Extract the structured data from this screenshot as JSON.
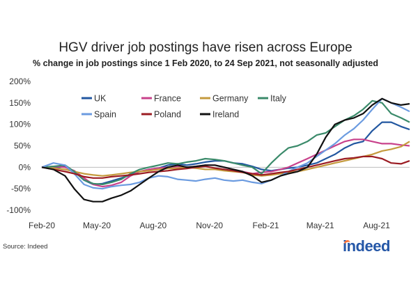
{
  "source": "Source: Indeed",
  "logo_text": "indeed",
  "chart_data": {
    "type": "line",
    "title": "HGV driver job postings have risen across Europe",
    "subtitle": "% change in job postings since 1 Feb 2020, to 24 Sep 2021, not seasonally adjusted",
    "xlabel": "",
    "ylabel": "",
    "ylim": [
      -100,
      200
    ],
    "y_ticks": [
      -100,
      -50,
      0,
      50,
      100,
      150,
      200
    ],
    "y_tick_labels": [
      "-100%",
      "-50%",
      "0%",
      "50%",
      "100%",
      "150%",
      "200%"
    ],
    "x_ticks": [
      "2020-02-01",
      "2020-05-01",
      "2020-08-01",
      "2020-11-01",
      "2021-02-01",
      "2021-05-01",
      "2021-08-01"
    ],
    "x_tick_labels": [
      "Feb-20",
      "May-20",
      "Aug-20",
      "Nov-20",
      "Feb-21",
      "May-21",
      "Aug-21"
    ],
    "x_range": [
      "2020-02-01",
      "2021-09-24"
    ],
    "legend_placement": "top-left",
    "series": [
      {
        "name": "UK",
        "color": "#2257a0",
        "x": [
          "2020-02-01",
          "2020-02-20",
          "2020-03-10",
          "2020-03-25",
          "2020-04-10",
          "2020-04-25",
          "2020-05-10",
          "2020-05-25",
          "2020-06-10",
          "2020-06-25",
          "2020-07-10",
          "2020-07-25",
          "2020-08-10",
          "2020-08-25",
          "2020-09-10",
          "2020-09-25",
          "2020-10-10",
          "2020-10-25",
          "2020-11-10",
          "2020-11-25",
          "2020-12-10",
          "2020-12-25",
          "2021-01-10",
          "2021-01-25",
          "2021-02-10",
          "2021-02-25",
          "2021-03-10",
          "2021-03-25",
          "2021-04-10",
          "2021-04-25",
          "2021-05-10",
          "2021-05-25",
          "2021-06-10",
          "2021-06-25",
          "2021-07-10",
          "2021-07-25",
          "2021-08-10",
          "2021-08-25",
          "2021-09-10",
          "2021-09-24"
        ],
        "values": [
          0,
          -2,
          2,
          -10,
          -30,
          -40,
          -38,
          -32,
          -25,
          -18,
          -10,
          -5,
          -2,
          5,
          8,
          5,
          8,
          12,
          15,
          15,
          10,
          8,
          2,
          -5,
          -8,
          -5,
          -2,
          0,
          5,
          10,
          20,
          30,
          45,
          55,
          60,
          85,
          105,
          105,
          95,
          88
        ]
      },
      {
        "name": "France",
        "color": "#c8418b",
        "x": [
          "2020-02-01",
          "2020-02-20",
          "2020-03-10",
          "2020-03-25",
          "2020-04-10",
          "2020-04-25",
          "2020-05-10",
          "2020-05-25",
          "2020-06-10",
          "2020-06-25",
          "2020-07-10",
          "2020-07-25",
          "2020-08-10",
          "2020-08-25",
          "2020-09-10",
          "2020-09-25",
          "2020-10-10",
          "2020-10-25",
          "2020-11-10",
          "2020-11-25",
          "2020-12-10",
          "2020-12-25",
          "2021-01-10",
          "2021-01-25",
          "2021-02-10",
          "2021-02-25",
          "2021-03-10",
          "2021-03-25",
          "2021-04-10",
          "2021-04-25",
          "2021-05-10",
          "2021-05-25",
          "2021-06-10",
          "2021-06-25",
          "2021-07-10",
          "2021-07-25",
          "2021-08-10",
          "2021-08-25",
          "2021-09-10",
          "2021-09-24"
        ],
        "values": [
          0,
          2,
          0,
          -8,
          -25,
          -40,
          -45,
          -42,
          -35,
          -20,
          -10,
          -5,
          -2,
          0,
          2,
          0,
          2,
          5,
          5,
          0,
          -5,
          -10,
          -15,
          -12,
          -10,
          -5,
          0,
          10,
          20,
          30,
          40,
          50,
          60,
          65,
          65,
          60,
          55,
          55,
          52,
          50
        ]
      },
      {
        "name": "Germany",
        "color": "#c49a3d",
        "x": [
          "2020-02-01",
          "2020-02-20",
          "2020-03-10",
          "2020-03-25",
          "2020-04-10",
          "2020-04-25",
          "2020-05-10",
          "2020-05-25",
          "2020-06-10",
          "2020-06-25",
          "2020-07-10",
          "2020-07-25",
          "2020-08-10",
          "2020-08-25",
          "2020-09-10",
          "2020-09-25",
          "2020-10-10",
          "2020-10-25",
          "2020-11-10",
          "2020-11-25",
          "2020-12-10",
          "2020-12-25",
          "2021-01-10",
          "2021-01-25",
          "2021-02-10",
          "2021-02-25",
          "2021-03-10",
          "2021-03-25",
          "2021-04-10",
          "2021-04-25",
          "2021-05-10",
          "2021-05-25",
          "2021-06-10",
          "2021-06-25",
          "2021-07-10",
          "2021-07-25",
          "2021-08-10",
          "2021-08-25",
          "2021-09-10",
          "2021-09-24"
        ],
        "values": [
          0,
          -2,
          -5,
          -10,
          -15,
          -18,
          -20,
          -18,
          -15,
          -12,
          -10,
          -8,
          -5,
          -3,
          -2,
          0,
          -2,
          -5,
          -5,
          -8,
          -10,
          -12,
          -18,
          -20,
          -18,
          -15,
          -12,
          -10,
          -5,
          0,
          5,
          10,
          15,
          20,
          25,
          30,
          38,
          42,
          48,
          60
        ]
      },
      {
        "name": "Italy",
        "color": "#3a8a6a",
        "x": [
          "2020-02-01",
          "2020-02-20",
          "2020-03-10",
          "2020-03-25",
          "2020-04-10",
          "2020-04-25",
          "2020-05-10",
          "2020-05-25",
          "2020-06-10",
          "2020-06-25",
          "2020-07-10",
          "2020-07-25",
          "2020-08-10",
          "2020-08-25",
          "2020-09-10",
          "2020-09-25",
          "2020-10-10",
          "2020-10-25",
          "2020-11-10",
          "2020-11-25",
          "2020-12-10",
          "2020-12-25",
          "2021-01-10",
          "2021-01-25",
          "2021-02-10",
          "2021-02-25",
          "2021-03-10",
          "2021-03-25",
          "2021-04-10",
          "2021-04-25",
          "2021-05-10",
          "2021-05-25",
          "2021-06-10",
          "2021-06-25",
          "2021-07-10",
          "2021-07-25",
          "2021-08-10",
          "2021-08-25",
          "2021-09-10",
          "2021-09-24"
        ],
        "values": [
          0,
          2,
          5,
          -10,
          -30,
          -38,
          -40,
          -35,
          -28,
          -15,
          -5,
          0,
          5,
          10,
          8,
          12,
          15,
          20,
          18,
          15,
          10,
          5,
          0,
          -15,
          10,
          30,
          45,
          50,
          60,
          75,
          80,
          95,
          110,
          120,
          135,
          155,
          150,
          125,
          115,
          105
        ]
      },
      {
        "name": "Spain",
        "color": "#6b9be0",
        "x": [
          "2020-02-01",
          "2020-02-20",
          "2020-03-10",
          "2020-03-25",
          "2020-04-10",
          "2020-04-25",
          "2020-05-10",
          "2020-05-25",
          "2020-06-10",
          "2020-06-25",
          "2020-07-10",
          "2020-07-25",
          "2020-08-10",
          "2020-08-25",
          "2020-09-10",
          "2020-09-25",
          "2020-10-10",
          "2020-10-25",
          "2020-11-10",
          "2020-11-25",
          "2020-12-10",
          "2020-12-25",
          "2021-01-10",
          "2021-01-25",
          "2021-02-10",
          "2021-02-25",
          "2021-03-10",
          "2021-03-25",
          "2021-04-10",
          "2021-04-25",
          "2021-05-10",
          "2021-05-25",
          "2021-06-10",
          "2021-06-25",
          "2021-07-10",
          "2021-07-25",
          "2021-08-10",
          "2021-08-25",
          "2021-09-10",
          "2021-09-24"
        ],
        "values": [
          0,
          10,
          5,
          -15,
          -40,
          -48,
          -50,
          -45,
          -42,
          -40,
          -35,
          -25,
          -20,
          -22,
          -28,
          -30,
          -32,
          -28,
          -25,
          -30,
          -32,
          -30,
          -35,
          -38,
          -30,
          -20,
          -10,
          0,
          10,
          25,
          40,
          55,
          75,
          90,
          110,
          135,
          160,
          150,
          140,
          130
        ]
      },
      {
        "name": "Poland",
        "color": "#9b1c23",
        "x": [
          "2020-02-01",
          "2020-02-20",
          "2020-03-10",
          "2020-03-25",
          "2020-04-10",
          "2020-04-25",
          "2020-05-10",
          "2020-05-25",
          "2020-06-10",
          "2020-06-25",
          "2020-07-10",
          "2020-07-25",
          "2020-08-10",
          "2020-08-25",
          "2020-09-10",
          "2020-09-25",
          "2020-10-10",
          "2020-10-25",
          "2020-11-10",
          "2020-11-25",
          "2020-12-10",
          "2020-12-25",
          "2021-01-10",
          "2021-01-25",
          "2021-02-10",
          "2021-02-25",
          "2021-03-10",
          "2021-03-25",
          "2021-04-10",
          "2021-04-25",
          "2021-05-10",
          "2021-05-25",
          "2021-06-10",
          "2021-06-25",
          "2021-07-10",
          "2021-07-25",
          "2021-08-10",
          "2021-08-25",
          "2021-09-10",
          "2021-09-24"
        ],
        "values": [
          0,
          -5,
          -10,
          -15,
          -22,
          -25,
          -25,
          -22,
          -20,
          -18,
          -15,
          -12,
          -10,
          -8,
          -5,
          -3,
          0,
          2,
          -2,
          -5,
          -8,
          -12,
          -15,
          -18,
          -15,
          -12,
          -10,
          -5,
          0,
          5,
          10,
          15,
          20,
          22,
          25,
          25,
          20,
          10,
          8,
          15
        ]
      },
      {
        "name": "Ireland",
        "color": "#111111",
        "x": [
          "2020-02-01",
          "2020-02-20",
          "2020-03-10",
          "2020-03-25",
          "2020-04-10",
          "2020-04-25",
          "2020-05-10",
          "2020-05-25",
          "2020-06-10",
          "2020-06-25",
          "2020-07-10",
          "2020-07-25",
          "2020-08-10",
          "2020-08-25",
          "2020-09-10",
          "2020-09-25",
          "2020-10-10",
          "2020-10-25",
          "2020-11-10",
          "2020-11-25",
          "2020-12-10",
          "2020-12-25",
          "2021-01-10",
          "2021-01-25",
          "2021-02-10",
          "2021-02-25",
          "2021-03-10",
          "2021-03-25",
          "2021-04-10",
          "2021-04-25",
          "2021-05-10",
          "2021-05-25",
          "2021-06-10",
          "2021-06-25",
          "2021-07-10",
          "2021-07-25",
          "2021-08-10",
          "2021-08-25",
          "2021-09-10",
          "2021-09-24"
        ],
        "values": [
          0,
          -5,
          -20,
          -50,
          -75,
          -80,
          -80,
          -72,
          -65,
          -55,
          -40,
          -25,
          -10,
          0,
          5,
          0,
          2,
          5,
          5,
          0,
          -5,
          -10,
          -20,
          -35,
          -30,
          -20,
          -15,
          -10,
          0,
          30,
          70,
          100,
          110,
          115,
          125,
          145,
          160,
          150,
          145,
          148
        ]
      }
    ]
  }
}
